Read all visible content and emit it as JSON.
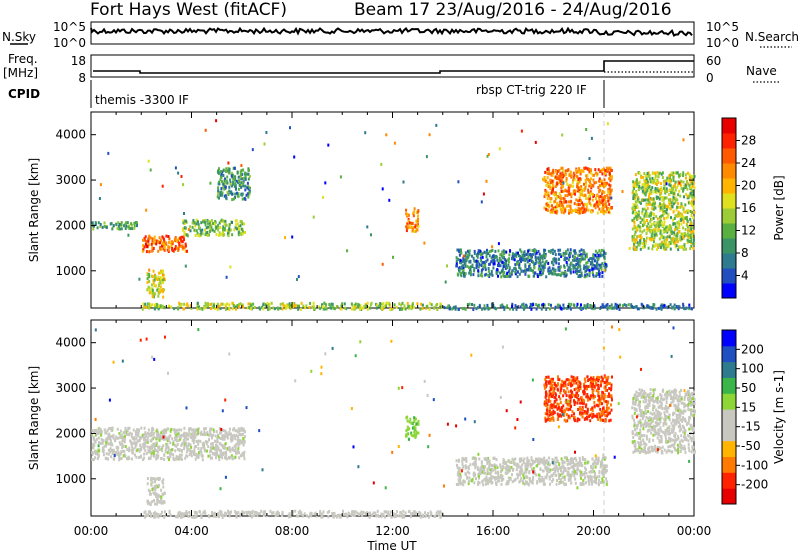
{
  "header": {
    "station": "Fort Hays West (fitACF)",
    "beam_date": "Beam 17 23/Aug/2016 - 24/Aug/2016"
  },
  "top_panels": {
    "nsky_label": "N.Sky",
    "nsky_ticks": [
      "10^5",
      "10^0"
    ],
    "nsky_right_ticks": [
      "10^5",
      "10^0"
    ],
    "nsearch_label": "N.Search",
    "freq_label_1": "Freq.",
    "freq_label_2": "[MHz]",
    "freq_ticks": [
      "18",
      "8"
    ],
    "nave_ticks": [
      "60",
      "0"
    ],
    "nave_label": "Nave",
    "cpid_label": "CPID",
    "cpid_1": "themis -3300 IF",
    "cpid_2": "rbsp CT-trig 220 IF"
  },
  "x_axis": {
    "label": "Time UT",
    "ticks": [
      "00:00",
      "04:00",
      "08:00",
      "12:00",
      "16:00",
      "20:00",
      "00:00"
    ]
  },
  "chart_data": [
    {
      "type": "heatmap",
      "name": "power",
      "ylabel": "Slant Range [km]",
      "yticks": [
        1000,
        2000,
        3000,
        4000
      ],
      "ylim": [
        180,
        4500
      ],
      "xlim": [
        0,
        24
      ],
      "colorbar": {
        "label": "Power [dB]",
        "ticks": [
          "28",
          "24",
          "20",
          "16",
          "12",
          "8",
          "4"
        ],
        "colors": [
          "#0000ff",
          "#224fc0",
          "#2e7b8f",
          "#3b9466",
          "#59b041",
          "#9ccd36",
          "#dfe11e",
          "#ffb400",
          "#ff8a00",
          "#ff5a00",
          "#ff2200",
          "#e80000"
        ]
      },
      "clusters": [
        {
          "t": [
            2.0,
            3.8
          ],
          "r": [
            1450,
            1800
          ],
          "v": 24
        },
        {
          "t": [
            0.0,
            2.0
          ],
          "r": [
            1950,
            2100
          ],
          "v": 10
        },
        {
          "t": [
            3.6,
            6.1
          ],
          "r": [
            1800,
            2150
          ],
          "v": 12
        },
        {
          "t": [
            2.2,
            2.9
          ],
          "r": [
            450,
            1050
          ],
          "v": 16
        },
        {
          "t": [
            5.0,
            6.3
          ],
          "r": [
            2600,
            3300
          ],
          "v": 8
        },
        {
          "t": [
            12.5,
            13.0
          ],
          "r": [
            1900,
            2400
          ],
          "v": 22
        },
        {
          "t": [
            18.0,
            20.7
          ],
          "r": [
            2300,
            3300
          ],
          "v": 22
        },
        {
          "t": [
            21.5,
            24.0
          ],
          "r": [
            1500,
            3200
          ],
          "v": 14
        },
        {
          "t": [
            14.5,
            20.5
          ],
          "r": [
            900,
            1500
          ],
          "v": 6
        },
        {
          "t": [
            2.0,
            14.0
          ],
          "r": [
            180,
            320
          ],
          "v": 14
        },
        {
          "t": [
            14.0,
            24.0
          ],
          "r": [
            180,
            300
          ],
          "v": 6
        }
      ]
    },
    {
      "type": "heatmap",
      "name": "velocity",
      "ylabel": "Slant Range [km]",
      "yticks": [
        1000,
        2000,
        3000,
        4000
      ],
      "ylim": [
        180,
        4500
      ],
      "xlim": [
        0,
        24
      ],
      "colorbar": {
        "label": "Velocity [m s-1]",
        "ticks": [
          "200",
          "100",
          "50",
          "15",
          "-15",
          "-50",
          "-100",
          "-200"
        ],
        "colors": [
          "#e80000",
          "#ff2200",
          "#ff7a00",
          "#ffb400",
          "#c8c8c0",
          "#c8c8c0",
          "#8dd635",
          "#3bb54a",
          "#2e7b8f",
          "#1f4fc0",
          "#0000ff"
        ]
      },
      "clusters": [
        {
          "t": [
            0.0,
            6.1
          ],
          "r": [
            1450,
            2150
          ],
          "v": 0
        },
        {
          "t": [
            2.2,
            2.9
          ],
          "r": [
            450,
            1050
          ],
          "v": 0
        },
        {
          "t": [
            12.5,
            13.0
          ],
          "r": [
            1900,
            2400
          ],
          "v": 60
        },
        {
          "t": [
            18.0,
            20.7
          ],
          "r": [
            2300,
            3300
          ],
          "v": -180
        },
        {
          "t": [
            21.5,
            24.0
          ],
          "r": [
            1600,
            3000
          ],
          "v": 0
        },
        {
          "t": [
            2.0,
            14.0
          ],
          "r": [
            180,
            320
          ],
          "v": -30
        },
        {
          "t": [
            14.5,
            20.5
          ],
          "r": [
            900,
            1500
          ],
          "v": 0
        }
      ]
    }
  ]
}
